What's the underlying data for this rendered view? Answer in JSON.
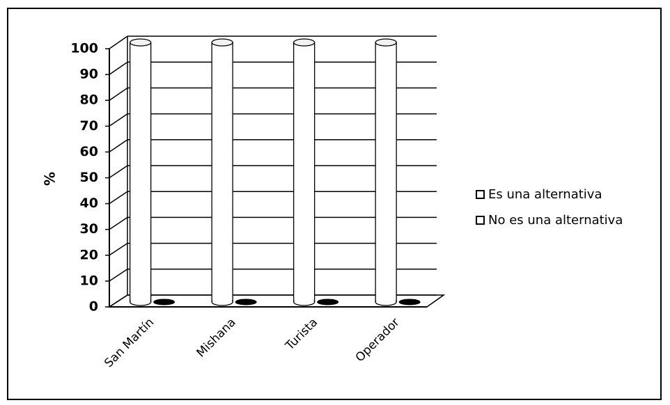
{
  "chart_data": {
    "type": "bar",
    "categories": [
      "San Martín",
      "Mishana",
      "Turista",
      "Operador"
    ],
    "series": [
      {
        "name": "Es una alternativa",
        "values": [
          100,
          100,
          100,
          100
        ]
      },
      {
        "name": "No es una alternativa",
        "values": [
          0,
          0,
          0,
          0
        ]
      }
    ],
    "yticks": [
      "0",
      "10",
      "20",
      "30",
      "40",
      "50",
      "60",
      "70",
      "80",
      "90",
      "100"
    ],
    "ylim": [
      0,
      100
    ],
    "ylabel": "%",
    "xlabel": "",
    "title": "",
    "grid": true,
    "legend_position": "right"
  }
}
